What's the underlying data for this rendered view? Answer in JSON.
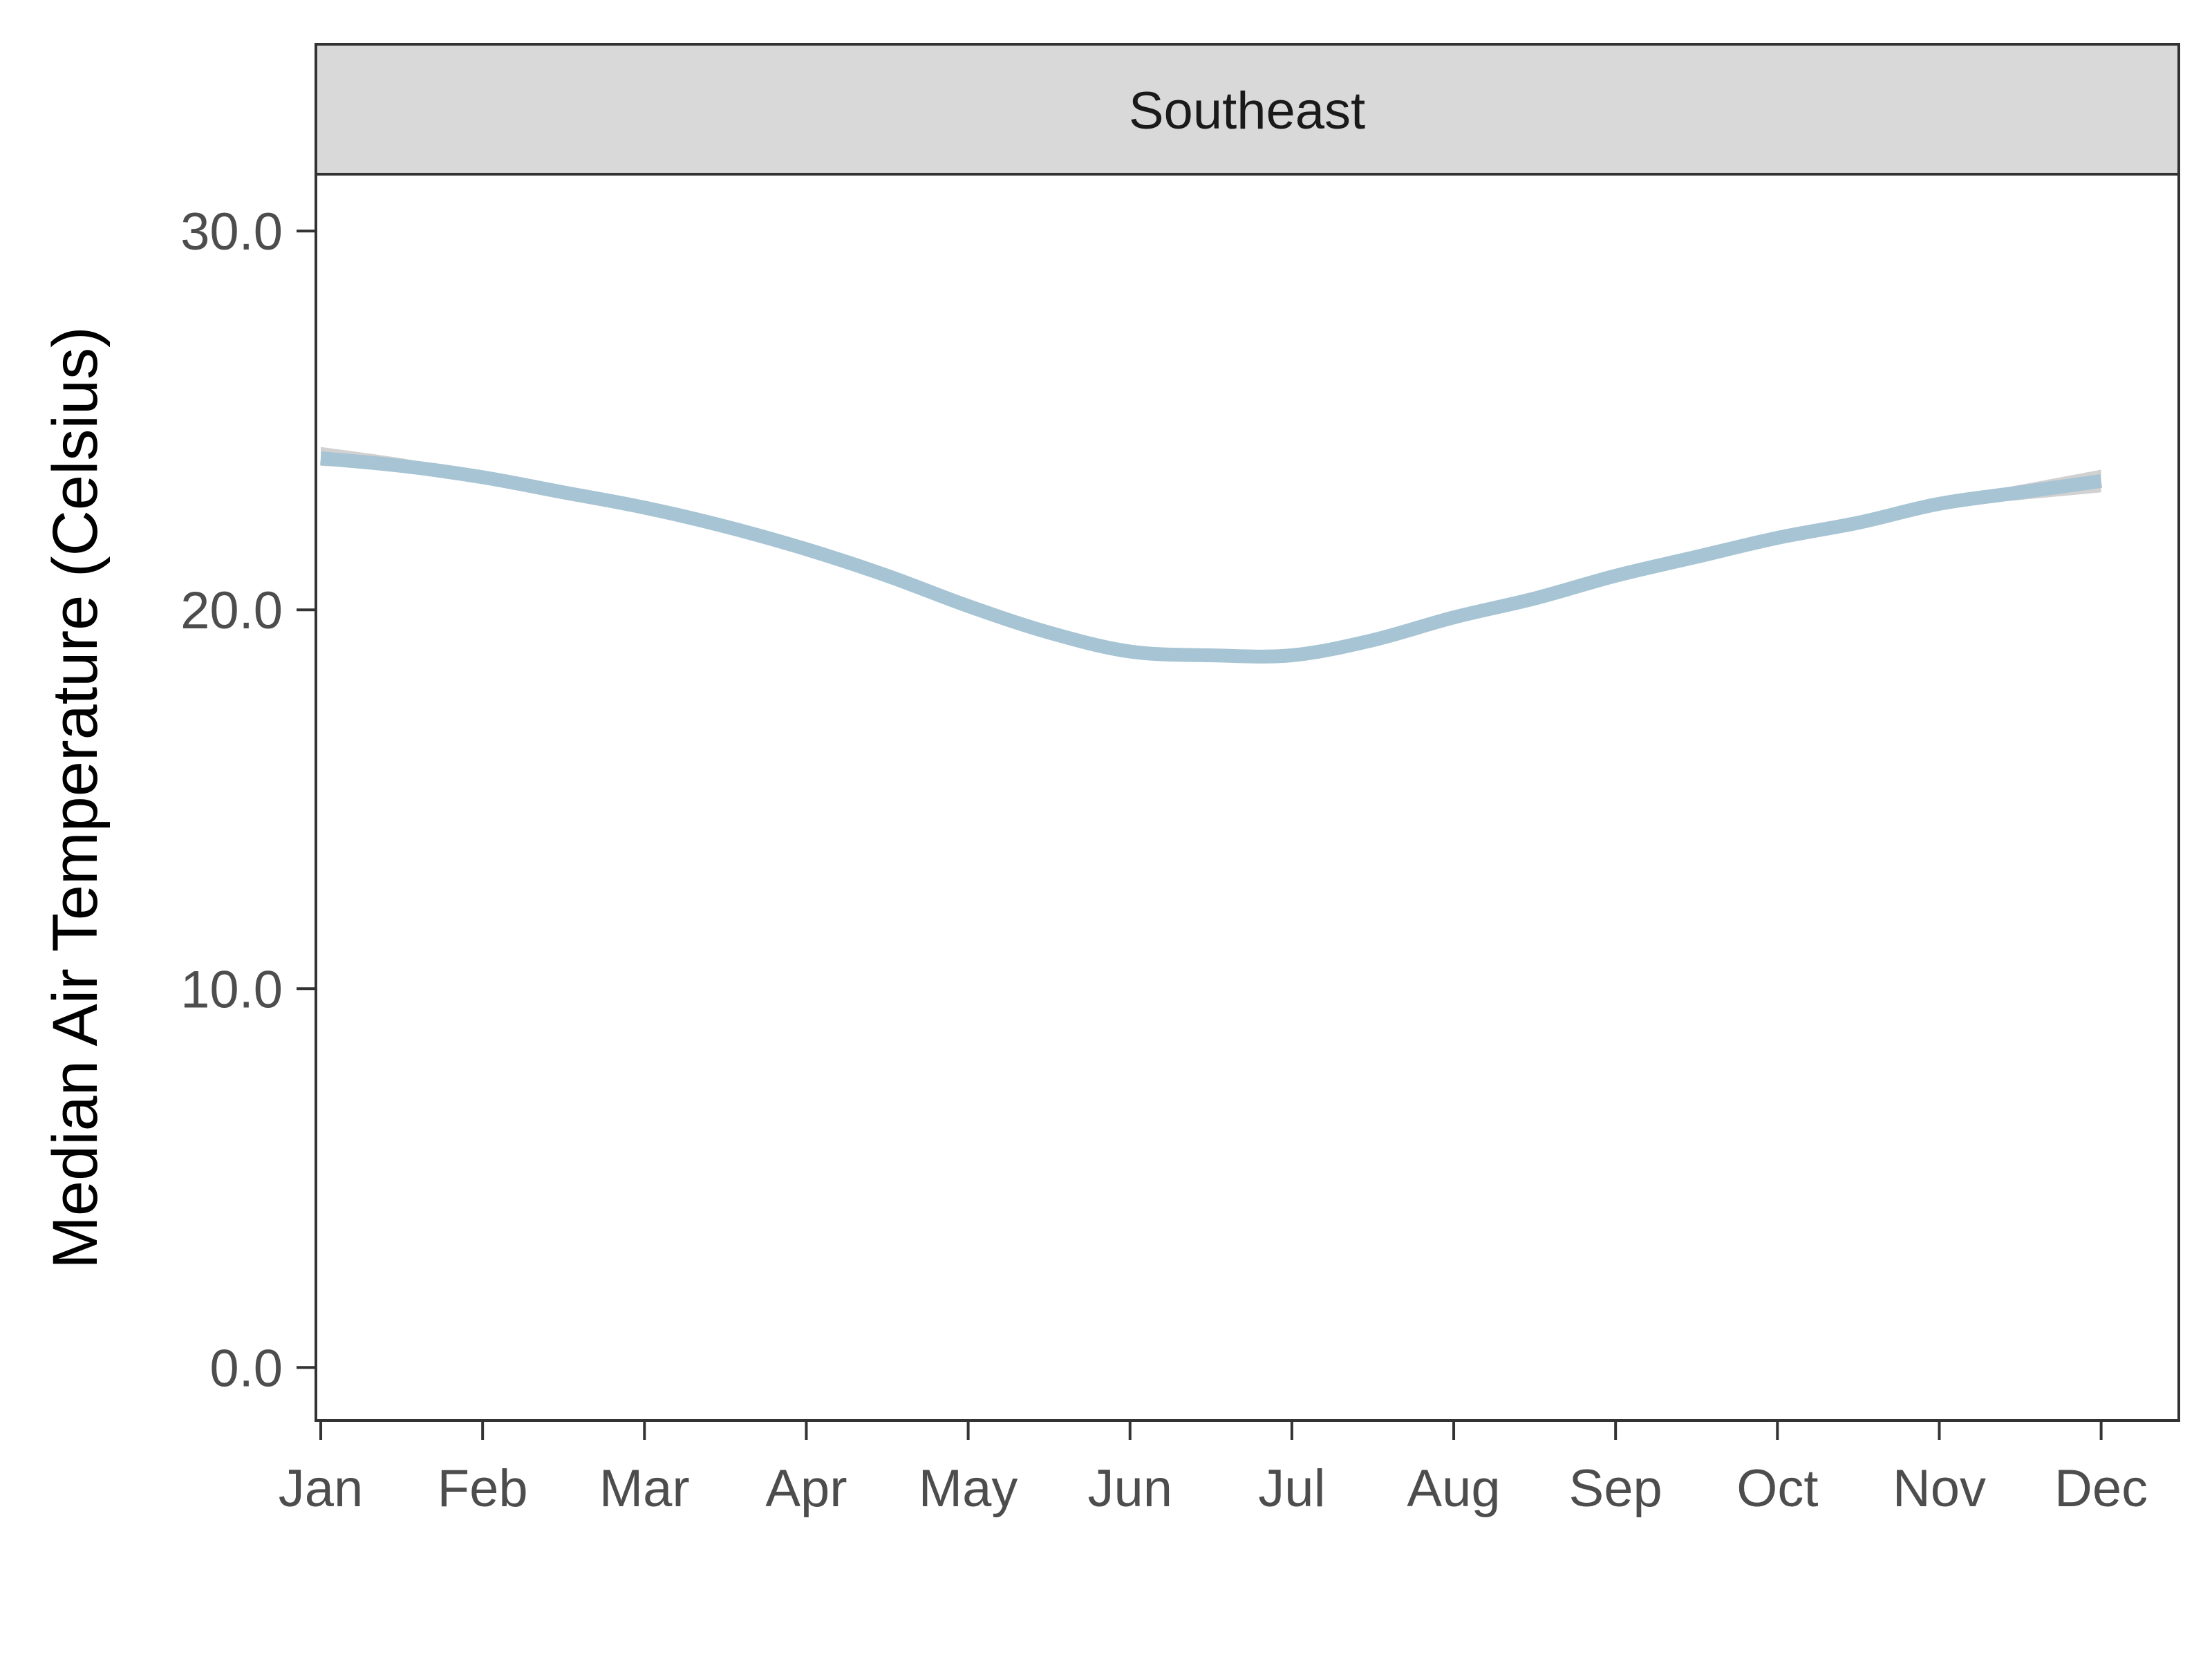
{
  "chart_data": {
    "type": "line",
    "panel_title": "Southeast",
    "xlabel": "",
    "ylabel": "Median Air Temperature (Celsius)",
    "categories": [
      "Jan",
      "Feb",
      "Mar",
      "Apr",
      "May",
      "Jun",
      "Jul",
      "Aug",
      "Sep",
      "Oct",
      "Nov",
      "Dec"
    ],
    "x": [
      1,
      1.5,
      2,
      2.5,
      3,
      3.5,
      4,
      4.5,
      5,
      5.5,
      6,
      6.5,
      7,
      7.5,
      8,
      8.5,
      9,
      9.5,
      10,
      10.5,
      11,
      11.5,
      12
    ],
    "series": [
      {
        "values": [
          24.0,
          23.8,
          23.5,
          23.1,
          22.7,
          22.2,
          21.6,
          20.9,
          20.1,
          19.4,
          18.9,
          18.8,
          18.8,
          19.2,
          19.8,
          20.3,
          20.9,
          21.4,
          21.9,
          22.3,
          22.8,
          23.1,
          23.4
        ],
        "lower": [
          23.8,
          23.7,
          23.4,
          23.0,
          22.6,
          22.1,
          21.5,
          20.8,
          20.0,
          19.3,
          18.8,
          18.7,
          18.7,
          19.1,
          19.7,
          20.2,
          20.8,
          21.3,
          21.8,
          22.2,
          22.7,
          22.9,
          23.1
        ],
        "upper": [
          24.3,
          24.0,
          23.6,
          23.2,
          22.8,
          22.3,
          21.7,
          21.0,
          20.2,
          19.5,
          19.0,
          18.9,
          18.9,
          19.3,
          19.9,
          20.4,
          21.0,
          21.5,
          22.0,
          22.4,
          22.9,
          23.3,
          23.7
        ]
      }
    ],
    "ylim": [
      -1.4,
      31.5
    ],
    "xlim": [
      0.97,
      12.48
    ],
    "yticks": [
      0,
      10,
      20,
      30
    ],
    "ytick_labels": [
      "0.0",
      "10.0",
      "20.0",
      "30.0"
    ],
    "grid": false,
    "colors": {
      "line": "#a6c4d4",
      "ribbon": "#cccccc",
      "strip": "#d9d9d9",
      "border": "#333333"
    }
  }
}
